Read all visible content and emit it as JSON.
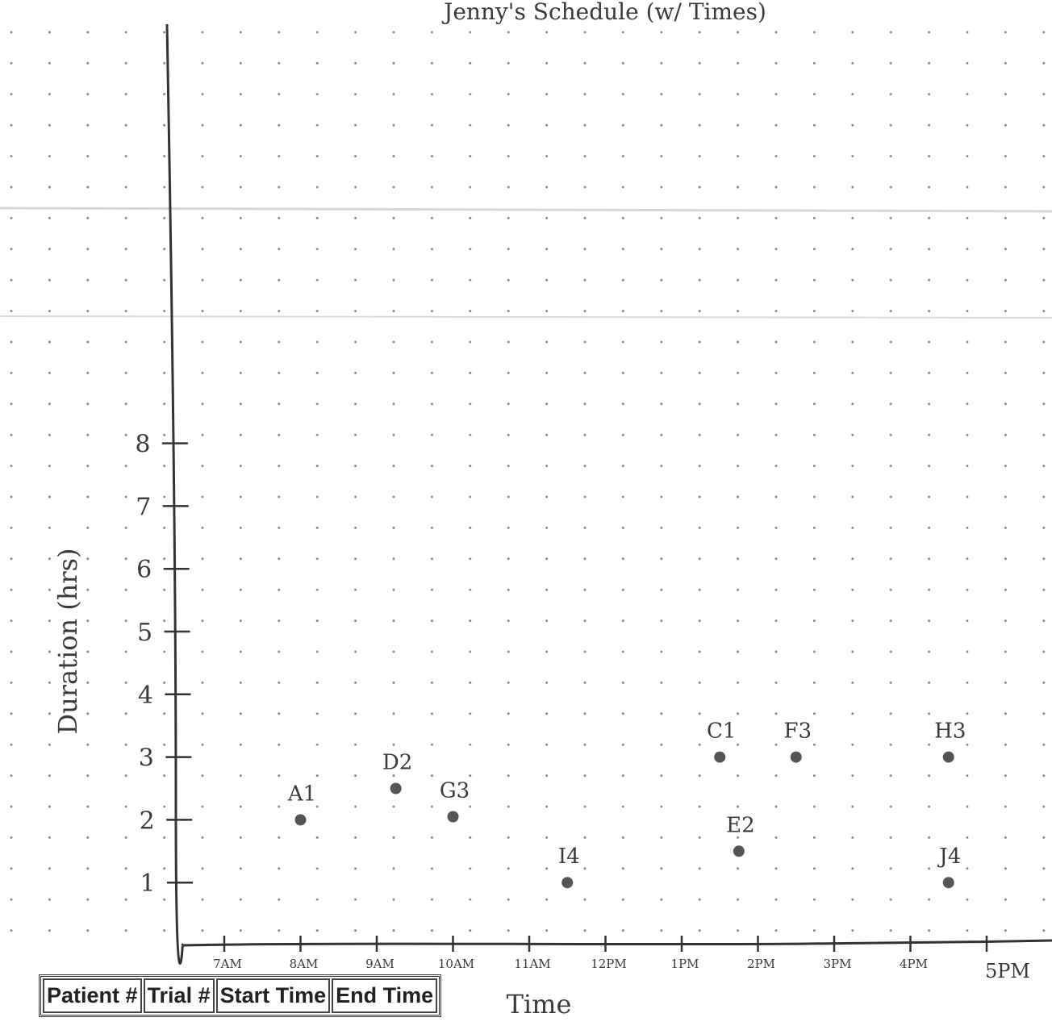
{
  "chart_data": {
    "type": "scatter",
    "title": "Jenny's Schedule (w/ Times)",
    "xlabel": "Time",
    "ylabel": "Duration (hrs)",
    "x_tick_labels": [
      "7AM",
      "8AM",
      "9AM",
      "10AM",
      "11AM",
      "12PM",
      "1PM",
      "2PM",
      "3PM",
      "4PM",
      "5PM"
    ],
    "y_tick_labels": [
      "1",
      "2",
      "3",
      "4",
      "5",
      "6",
      "7",
      "8"
    ],
    "xlim": [
      "6:30",
      "17:30"
    ],
    "ylim": [
      0,
      8
    ],
    "grid": "dot grid",
    "points": [
      {
        "label": "A1",
        "x": "8:00",
        "y": 2.0
      },
      {
        "label": "D2",
        "x": "9:15",
        "y": 2.5
      },
      {
        "label": "G3",
        "x": "10:00",
        "y": 2.05
      },
      {
        "label": "I4",
        "x": "11:30",
        "y": 1.0
      },
      {
        "label": "C1",
        "x": "13:30",
        "y": 3.0
      },
      {
        "label": "E2",
        "x": "13:45",
        "y": 1.5
      },
      {
        "label": "F3",
        "x": "14:30",
        "y": 3.0
      },
      {
        "label": "H3",
        "x": "16:30",
        "y": 3.0
      },
      {
        "label": "J4",
        "x": "16:30",
        "y": 1.0
      }
    ]
  },
  "table": {
    "headers": [
      "Patient #",
      "Trial #",
      "Start Time",
      "End Time"
    ]
  },
  "colors": {
    "ink": "#3a3a3a",
    "point": "#555555",
    "grid_dot": "#8a8a8a"
  }
}
